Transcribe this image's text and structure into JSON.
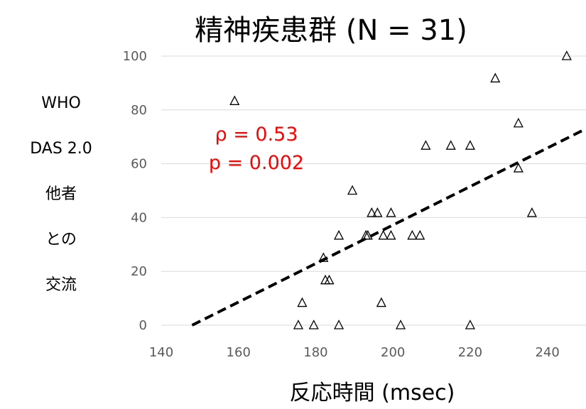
{
  "chart_data": {
    "type": "scatter",
    "title": "精神疾患群 (N = 31)",
    "xlabel": "反応時間 (msec)",
    "ylabel_lines": [
      "WHO",
      "DAS 2.0",
      "他者",
      "との",
      "交流"
    ],
    "xlim": [
      140,
      250
    ],
    "ylim": [
      0,
      100
    ],
    "x_ticks": [
      "140",
      "160",
      "180",
      "200",
      "220",
      "240"
    ],
    "y_ticks": [
      "0",
      "20",
      "40",
      "60",
      "80",
      "100"
    ],
    "grid": "horizontal",
    "marker": "open-triangle",
    "annotations": [
      "ρ = 0.53",
      "p = 0.002"
    ],
    "trendline": {
      "style": "dashed",
      "x": [
        148,
        250
      ],
      "y": [
        0,
        73
      ]
    },
    "points": [
      {
        "x": 159,
        "y": 83.3
      },
      {
        "x": 175.5,
        "y": 0
      },
      {
        "x": 176.5,
        "y": 8.3
      },
      {
        "x": 179.5,
        "y": 0
      },
      {
        "x": 182,
        "y": 25
      },
      {
        "x": 182.5,
        "y": 16.7
      },
      {
        "x": 183.5,
        "y": 16.7
      },
      {
        "x": 186,
        "y": 0
      },
      {
        "x": 186,
        "y": 33.3
      },
      {
        "x": 189.5,
        "y": 50
      },
      {
        "x": 193,
        "y": 33.3
      },
      {
        "x": 193.5,
        "y": 33.3
      },
      {
        "x": 194.5,
        "y": 41.7
      },
      {
        "x": 196,
        "y": 41.7
      },
      {
        "x": 197,
        "y": 8.3
      },
      {
        "x": 197.5,
        "y": 33.3
      },
      {
        "x": 199.5,
        "y": 41.7
      },
      {
        "x": 199.5,
        "y": 33.3
      },
      {
        "x": 202,
        "y": 0
      },
      {
        "x": 205,
        "y": 33.3
      },
      {
        "x": 207,
        "y": 33.3
      },
      {
        "x": 208.5,
        "y": 66.7
      },
      {
        "x": 215,
        "y": 66.7
      },
      {
        "x": 220,
        "y": 66.7
      },
      {
        "x": 220,
        "y": 0
      },
      {
        "x": 226.5,
        "y": 91.7
      },
      {
        "x": 232.5,
        "y": 75
      },
      {
        "x": 232.5,
        "y": 58.3
      },
      {
        "x": 236,
        "y": 41.7
      },
      {
        "x": 245,
        "y": 100
      }
    ]
  }
}
